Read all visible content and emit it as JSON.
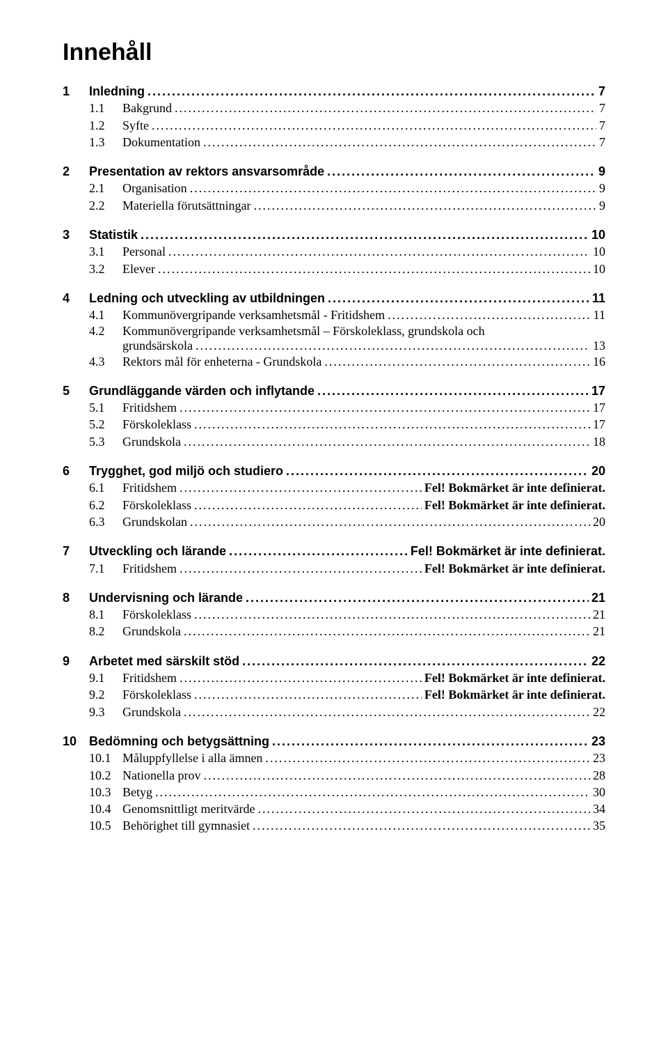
{
  "title": "Innehåll",
  "error_text": "Fel! Bokmärket är inte definierat.",
  "colors": {
    "text": "#000000",
    "background": "#ffffff"
  },
  "typography": {
    "title_font": "Arial",
    "title_size_pt": 26,
    "title_weight": "bold",
    "lvl1_font": "Arial",
    "lvl1_size_pt": 14,
    "lvl1_weight": "bold",
    "lvl2_font": "Times New Roman",
    "lvl2_size_pt": 14,
    "lvl2_weight": "normal"
  },
  "sections": [
    {
      "num": "1",
      "title": "Inledning",
      "page": "7",
      "subs": [
        {
          "num": "1.1",
          "title": "Bakgrund",
          "page": "7"
        },
        {
          "num": "1.2",
          "title": "Syfte",
          "page": "7"
        },
        {
          "num": "1.3",
          "title": "Dokumentation",
          "page": "7"
        }
      ]
    },
    {
      "num": "2",
      "title": "Presentation av rektors ansvarsområde",
      "page": "9",
      "subs": [
        {
          "num": "2.1",
          "title": "Organisation",
          "page": "9"
        },
        {
          "num": "2.2",
          "title": "Materiella förutsättningar",
          "page": "9"
        }
      ]
    },
    {
      "num": "3",
      "title": "Statistik",
      "page": "10",
      "subs": [
        {
          "num": "3.1",
          "title": "Personal",
          "page": "10"
        },
        {
          "num": "3.2",
          "title": "Elever",
          "page": "10"
        }
      ]
    },
    {
      "num": "4",
      "title": "Ledning och utveckling av utbildningen",
      "page": "11",
      "subs": [
        {
          "num": "4.1",
          "title": "Kommunövergripande verksamhetsmål - Fritidshem",
          "page": "11"
        },
        {
          "num": "4.2",
          "title_line1": "Kommunövergripande verksamhetsmål – Förskoleklass, grundskola och",
          "title_line2": "grundsärskola",
          "page": "13",
          "multiline": true
        },
        {
          "num": "4.3",
          "title": "Rektors mål för enheterna - Grundskola",
          "page": "16"
        }
      ]
    },
    {
      "num": "5",
      "title": "Grundläggande värden och inflytande",
      "page": "17",
      "subs": [
        {
          "num": "5.1",
          "title": "Fritidshem",
          "page": "17"
        },
        {
          "num": "5.2",
          "title": "Förskoleklass",
          "page": "17"
        },
        {
          "num": "5.3",
          "title": "Grundskola",
          "page": "18"
        }
      ]
    },
    {
      "num": "6",
      "title": "Trygghet, god miljö och studiero",
      "page": "20",
      "subs": [
        {
          "num": "6.1",
          "title": "Fritidshem",
          "page_error": true
        },
        {
          "num": "6.2",
          "title": "Förskoleklass",
          "page_error": true
        },
        {
          "num": "6.3",
          "title": "Grundskolan",
          "page": "20"
        }
      ]
    },
    {
      "num": "7",
      "title": "Utveckling och lärande",
      "page_error": true,
      "subs": [
        {
          "num": "7.1",
          "title": "Fritidshem",
          "page_error": true
        }
      ]
    },
    {
      "num": "8",
      "title": "Undervisning och lärande",
      "page": "21",
      "subs": [
        {
          "num": "8.1",
          "title": "Förskoleklass",
          "page": "21"
        },
        {
          "num": "8.2",
          "title": "Grundskola",
          "page": "21"
        }
      ]
    },
    {
      "num": "9",
      "title": "Arbetet med särskilt stöd",
      "page": "22",
      "subs": [
        {
          "num": "9.1",
          "title": "Fritidshem",
          "page_error": true
        },
        {
          "num": "9.2",
          "title": "Förskoleklass",
          "page_error": true
        },
        {
          "num": "9.3",
          "title": "Grundskola",
          "page": "22"
        }
      ]
    },
    {
      "num": "10",
      "title": "Bedömning och betygsättning",
      "page": "23",
      "subs": [
        {
          "num": "10.1",
          "title": "Måluppfyllelse i alla ämnen",
          "page": "23"
        },
        {
          "num": "10.2",
          "title": "Nationella prov",
          "page": "28"
        },
        {
          "num": "10.3",
          "title": "Betyg",
          "page": "30"
        },
        {
          "num": "10.4",
          "title": "Genomsnittligt meritvärde",
          "page": "34"
        },
        {
          "num": "10.5",
          "title": "Behörighet till gymnasiet",
          "page": "35"
        }
      ]
    }
  ]
}
